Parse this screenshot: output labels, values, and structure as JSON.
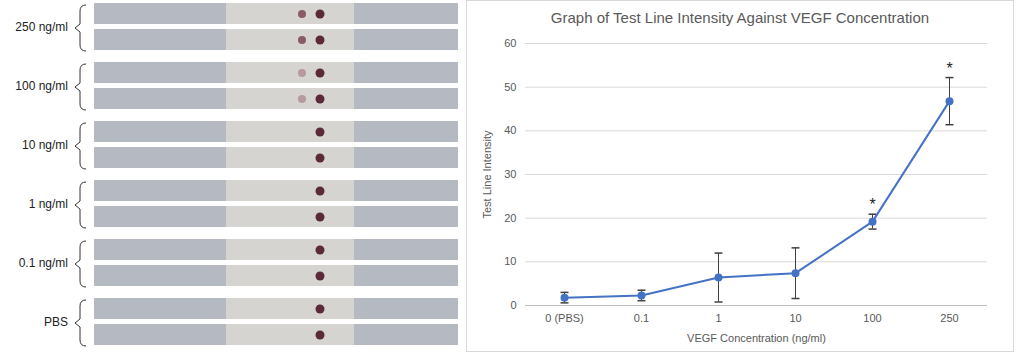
{
  "chart_data": {
    "type": "line",
    "title": "Graph of Test Line Intensity Against VEGF Concentration",
    "x_label": "VEGF Concentration (ng/ml)",
    "y_label": "Test Line Intensity",
    "categories": [
      "0 (PBS)",
      "0.1",
      "1",
      "10",
      "100",
      "250"
    ],
    "values": [
      1.8,
      2.3,
      6.4,
      7.4,
      19.2,
      46.8
    ],
    "errors": [
      1.2,
      1.2,
      5.6,
      5.8,
      1.7,
      5.4
    ],
    "annotations": [
      {
        "category": "100",
        "text": "*"
      },
      {
        "category": "250",
        "text": "*"
      }
    ],
    "color": "#4472c4",
    "marker": "circle",
    "ylim": [
      0,
      60
    ],
    "yticks": [
      0,
      10,
      20,
      30,
      40,
      50,
      60
    ],
    "grid": true
  },
  "strip_panel": {
    "labels": [
      "250 ng/ml",
      "100 ng/ml",
      "10 ng/ml",
      "1 ng/ml",
      "0.1 ng/ml",
      "PBS"
    ]
  }
}
